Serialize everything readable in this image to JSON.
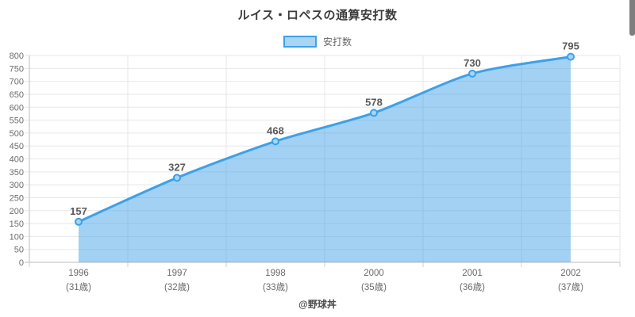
{
  "chart_data": {
    "type": "area",
    "title": "ルイス・ロペスの通算安打数",
    "legend_label": "安打数",
    "legend_position": "top",
    "categories": [
      "1996",
      "1997",
      "1998",
      "2000",
      "2001",
      "2002"
    ],
    "category_sublabels": [
      "(31歳)",
      "(32歳)",
      "(33歳)",
      "(35歳)",
      "(36歳)",
      "(37歳)"
    ],
    "values": [
      157,
      327,
      468,
      578,
      730,
      795
    ],
    "ylim": [
      0,
      800
    ],
    "ytick_step": 50,
    "grid": true,
    "colors": {
      "line": "#3da1e8",
      "area_fill": "rgba(58,157,230,0.47)",
      "point_fill": "#a9d4f2",
      "point_stroke": "#36a2eb",
      "value_label": "#595959",
      "axis_label": "#6b6b6b",
      "gridline": "#e7e7e7",
      "tick": "#cfcfcf",
      "axis_line": "#bdbdbd",
      "title": "#3c3c3c",
      "legend_text": "#666666"
    }
  },
  "footer": {
    "credit": "@野球丼"
  }
}
